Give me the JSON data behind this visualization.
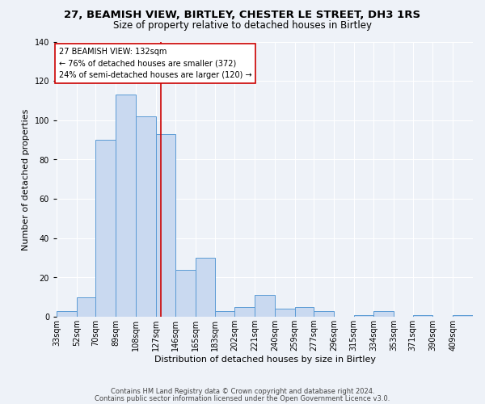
{
  "title": "27, BEAMISH VIEW, BIRTLEY, CHESTER LE STREET, DH3 1RS",
  "subtitle": "Size of property relative to detached houses in Birtley",
  "xlabel": "Distribution of detached houses by size in Birtley",
  "ylabel": "Number of detached properties",
  "bin_labels": [
    "33sqm",
    "52sqm",
    "70sqm",
    "89sqm",
    "108sqm",
    "127sqm",
    "146sqm",
    "165sqm",
    "183sqm",
    "202sqm",
    "221sqm",
    "240sqm",
    "259sqm",
    "277sqm",
    "296sqm",
    "315sqm",
    "334sqm",
    "353sqm",
    "371sqm",
    "390sqm",
    "409sqm"
  ],
  "bin_edges": [
    33,
    52,
    70,
    89,
    108,
    127,
    146,
    165,
    183,
    202,
    221,
    240,
    259,
    277,
    296,
    315,
    334,
    353,
    371,
    390,
    409
  ],
  "bar_heights": [
    3,
    10,
    90,
    113,
    102,
    93,
    24,
    30,
    3,
    5,
    11,
    4,
    5,
    3,
    0,
    1,
    3,
    0,
    1,
    0,
    1
  ],
  "bar_color": "#c9d9f0",
  "bar_edge_color": "#5b9bd5",
  "vline_x": 132,
  "vline_color": "#cc0000",
  "annotation_title": "27 BEAMISH VIEW: 132sqm",
  "annotation_line1": "← 76% of detached houses are smaller (372)",
  "annotation_line2": "24% of semi-detached houses are larger (120) →",
  "annotation_box_color": "#ffffff",
  "annotation_box_edge": "#cc0000",
  "ylim": [
    0,
    140
  ],
  "title_fontsize": 9.5,
  "subtitle_fontsize": 8.5,
  "axis_label_fontsize": 8,
  "tick_fontsize": 7,
  "ann_fontsize": 7,
  "footer1": "Contains HM Land Registry data © Crown copyright and database right 2024.",
  "footer2": "Contains public sector information licensed under the Open Government Licence v3.0.",
  "background_color": "#eef2f8",
  "grid_color": "#ffffff"
}
